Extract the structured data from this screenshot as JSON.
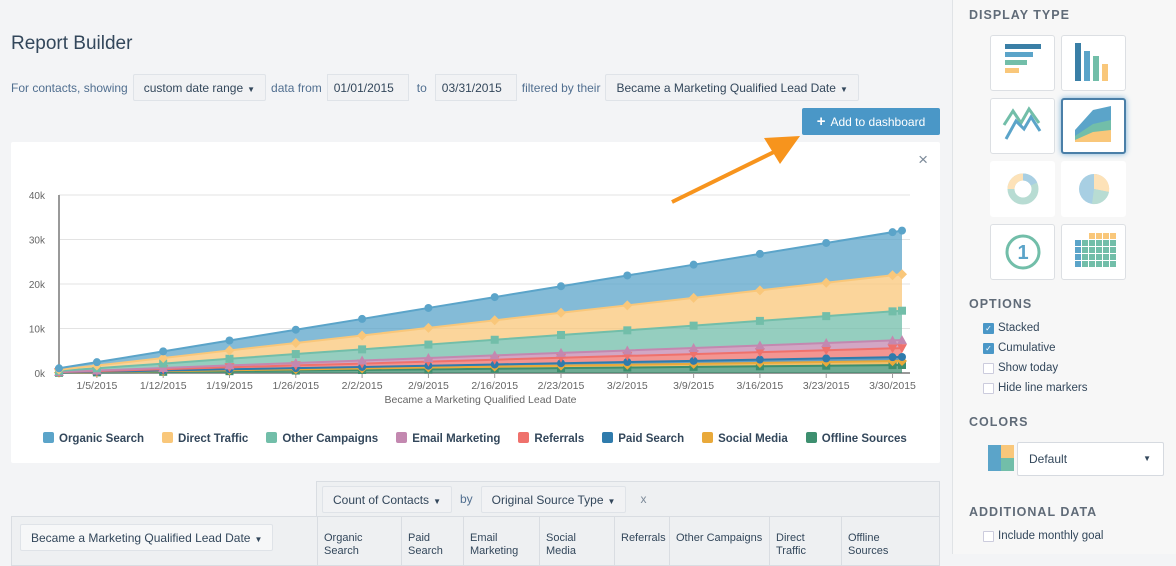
{
  "header": {
    "title": "Report Builder"
  },
  "filters": {
    "prefix": "For contacts, showing",
    "range": "custom date range",
    "data_from": "data from",
    "start": "01/01/2015",
    "to": "to",
    "end": "03/31/2015",
    "filtered_by": "filtered by their",
    "property": "Became a Marketing Qualified Lead Date"
  },
  "actions": {
    "add_to_dashboard": "Add to dashboard",
    "close": "×"
  },
  "chart_data": {
    "type": "area",
    "stacked": true,
    "cumulative": true,
    "xlabel": "Became a Marketing Qualified Lead Date",
    "ylabel": "",
    "ylim": [
      0,
      40000
    ],
    "yticks": [
      "0k",
      "10k",
      "20k",
      "30k",
      "40k"
    ],
    "ytick_values": [
      0,
      10000,
      20000,
      30000,
      40000
    ],
    "xlim": [
      "2015-01-01",
      "2015-03-31"
    ],
    "xticks": [
      "1/5/2015",
      "1/12/2015",
      "1/19/2015",
      "1/26/2015",
      "2/2/2015",
      "2/9/2015",
      "2/16/2015",
      "2/23/2015",
      "3/2/2015",
      "3/9/2015",
      "3/16/2015",
      "3/23/2015",
      "3/30/2015"
    ],
    "xtick_days": [
      4,
      11,
      18,
      25,
      32,
      39,
      46,
      53,
      60,
      67,
      74,
      81,
      88
    ],
    "grid": true,
    "legend_position": "bottom",
    "x": [
      "2015-01-01",
      "2015-01-05",
      "2015-01-12",
      "2015-01-19",
      "2015-01-26",
      "2015-02-02",
      "2015-02-09",
      "2015-02-16",
      "2015-02-23",
      "2015-03-02",
      "2015-03-09",
      "2015-03-16",
      "2015-03-23",
      "2015-03-30",
      "2015-03-31"
    ],
    "x_days": [
      0,
      4,
      11,
      18,
      25,
      32,
      39,
      46,
      53,
      60,
      67,
      74,
      81,
      88,
      89
    ],
    "series": [
      {
        "name": "Organic Search",
        "color": "#5ba4c9",
        "marker": "circle",
        "values": [
          320,
          745,
          1490,
          2230,
          2980,
          3720,
          4480,
          5220,
          5970,
          6710,
          7460,
          8200,
          8950,
          9690,
          9800
        ]
      },
      {
        "name": "Direct Traffic",
        "color": "#f9c77a",
        "marker": "diamond",
        "values": [
          270,
          620,
          1250,
          1870,
          2490,
          3120,
          3750,
          4370,
          4990,
          5620,
          6240,
          6860,
          7490,
          8110,
          8200
        ]
      },
      {
        "name": "Other Campaigns",
        "color": "#72bea9",
        "marker": "square",
        "values": [
          220,
          500,
          1000,
          1500,
          2010,
          2510,
          3020,
          3520,
          4020,
          4520,
          5020,
          5520,
          6030,
          6530,
          6600
        ]
      },
      {
        "name": "Email Marketing",
        "color": "#c388b0",
        "marker": "triangle",
        "values": [
          60,
          140,
          270,
          410,
          550,
          680,
          820,
          960,
          1100,
          1230,
          1370,
          1510,
          1640,
          1780,
          1800
        ]
      },
      {
        "name": "Referrals",
        "color": "#ef716c",
        "marker": "triangle-down",
        "values": [
          70,
          150,
          300,
          460,
          610,
          760,
          910,
          1070,
          1220,
          1370,
          1520,
          1670,
          1830,
          1980,
          2000
        ]
      },
      {
        "name": "Paid Search",
        "color": "#2f7bac",
        "marker": "circle",
        "values": [
          30,
          70,
          140,
          210,
          270,
          340,
          410,
          480,
          550,
          620,
          680,
          750,
          820,
          890,
          900
        ]
      },
      {
        "name": "Social Media",
        "color": "#e9a93a",
        "marker": "diamond",
        "values": [
          30,
          70,
          140,
          210,
          270,
          340,
          410,
          480,
          550,
          620,
          680,
          750,
          820,
          890,
          900
        ]
      },
      {
        "name": "Offline Sources",
        "color": "#3d8f6f",
        "marker": "square",
        "values": [
          60,
          140,
          270,
          410,
          550,
          680,
          820,
          960,
          1100,
          1230,
          1370,
          1510,
          1640,
          1780,
          1800
        ]
      }
    ]
  },
  "table": {
    "measure": "Count of Contacts",
    "by": "by",
    "breakdown": "Original Source Type",
    "remove": "x",
    "row_property": "Became a Marketing Qualified Lead Date",
    "columns": [
      "Organic Search",
      "Paid Search",
      "Email Marketing",
      "Social Media",
      "Referrals",
      "Other Campaigns",
      "Direct Traffic",
      "Offline Sources"
    ]
  },
  "sidebar": {
    "display_type": "DISPLAY TYPE",
    "display_types": [
      "horizontal-bar",
      "vertical-bar",
      "line",
      "area",
      "donut",
      "pie",
      "single-number",
      "grid"
    ],
    "selected_display_type": "area",
    "options_title": "OPTIONS",
    "options": [
      {
        "label": "Stacked",
        "checked": true
      },
      {
        "label": "Cumulative",
        "checked": true
      },
      {
        "label": "Show today",
        "checked": false
      },
      {
        "label": "Hide line markers",
        "checked": false
      }
    ],
    "colors_title": "COLORS",
    "color_scheme": "Default",
    "additional_title": "ADDITIONAL DATA",
    "additional": [
      {
        "label": "Include monthly goal",
        "checked": false
      }
    ]
  }
}
